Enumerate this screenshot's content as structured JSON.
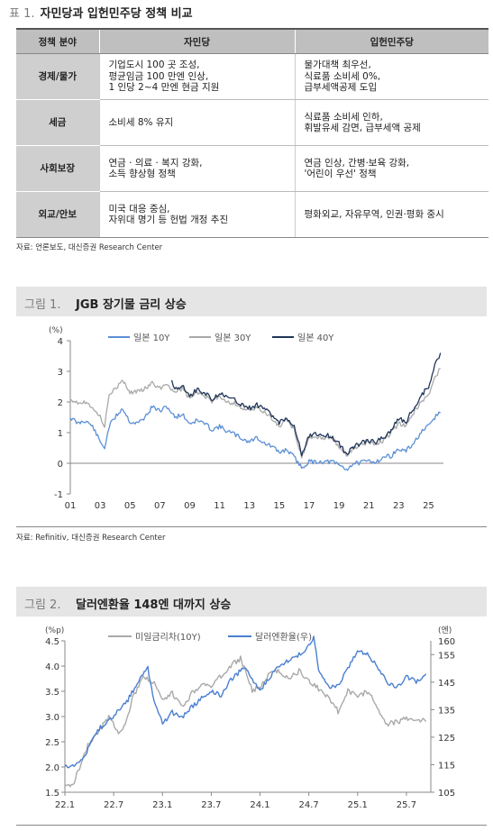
{
  "table": {
    "number": "표 1.",
    "title": "자민당과 입헌민주당 정책 비교",
    "headers": [
      "정책 분야",
      "자민당",
      "입헌민주당"
    ],
    "rows": [
      {
        "category": "경제/물가",
        "ldp": [
          "기업도시 100 곳 조성,",
          "평균임금 100 만엔 인상,",
          "1 인당 2~4 만엔 현금 지원"
        ],
        "cdp": [
          "물가대책 최우선,",
          "식료품 소비세 0%,",
          "급부세액공제 도입"
        ]
      },
      {
        "category": "세금",
        "ldp": [
          "소비세 8% 유지"
        ],
        "cdp": [
          "식료품 소비세 인하,",
          "휘발유세 감면, 급부세액 공제"
        ]
      },
      {
        "category": "사회보장",
        "ldp": [
          "연금 · 의료 · 복지 강화,",
          "소득 향상형 정책"
        ],
        "cdp": [
          "연금 인상, 간병·보육 강화,",
          "'어린이 우선' 정책"
        ]
      },
      {
        "category": "외교/안보",
        "ldp": [
          "미국 대응 중심,",
          "자위대 명기 등 헌법 개정 추진"
        ],
        "cdp": [
          "평화외교, 자유무역, 인권·평화 중시"
        ]
      }
    ],
    "source": "자료: 언론보도, 대신증권 Research Center"
  },
  "figure1": {
    "number": "그림 1.",
    "title": "JGB 장기물 금리 상승",
    "source": "자료: Refinitiv, 대신증권 Research Center"
  },
  "figure2": {
    "number": "그림 2.",
    "title": "달러엔환율 148엔 대까지 상승"
  },
  "chart_data": [
    {
      "type": "line",
      "unit_label": "(%)",
      "ylim": [
        -1,
        4
      ],
      "yticks": [
        -1,
        0,
        1,
        2,
        3,
        4
      ],
      "xlim": [
        2001,
        2026
      ],
      "xticks": [
        "01",
        "03",
        "05",
        "07",
        "09",
        "11",
        "13",
        "15",
        "17",
        "19",
        "21",
        "23",
        "25"
      ],
      "legend_position": "top-center",
      "grid": false,
      "series": [
        {
          "name": "일본 10Y",
          "color": "#5b8fd6",
          "x": [
            2001.0,
            2001.5,
            2002.0,
            2002.5,
            2003.0,
            2003.3,
            2003.6,
            2004.0,
            2004.5,
            2005.0,
            2005.5,
            2006.0,
            2006.5,
            2007.0,
            2007.5,
            2008.0,
            2008.5,
            2009.0,
            2009.5,
            2010.0,
            2010.5,
            2011.0,
            2011.5,
            2012.0,
            2012.5,
            2013.0,
            2013.5,
            2014.0,
            2014.5,
            2015.0,
            2015.5,
            2016.0,
            2016.5,
            2017.0,
            2017.5,
            2018.0,
            2018.5,
            2019.0,
            2019.5,
            2020.0,
            2020.5,
            2021.0,
            2021.5,
            2022.0,
            2022.5,
            2023.0,
            2023.5,
            2024.0,
            2024.5,
            2025.0,
            2025.5,
            2025.8
          ],
          "y": [
            1.5,
            1.3,
            1.4,
            1.2,
            0.7,
            0.5,
            1.2,
            1.5,
            1.8,
            1.35,
            1.3,
            1.5,
            1.85,
            1.7,
            1.85,
            1.5,
            1.6,
            1.3,
            1.4,
            1.3,
            1.1,
            1.2,
            1.05,
            0.95,
            0.8,
            0.7,
            0.85,
            0.65,
            0.55,
            0.35,
            0.45,
            0.2,
            -0.15,
            0.05,
            0.05,
            0.05,
            0.05,
            -0.05,
            -0.2,
            0.0,
            0.02,
            0.08,
            0.05,
            0.2,
            0.25,
            0.45,
            0.4,
            0.65,
            1.0,
            1.2,
            1.55,
            1.65
          ]
        },
        {
          "name": "일본 30Y",
          "color": "#a9a9a9",
          "x": [
            2001.0,
            2001.5,
            2002.0,
            2002.5,
            2003.0,
            2003.3,
            2003.6,
            2004.0,
            2004.5,
            2005.0,
            2005.5,
            2006.0,
            2006.5,
            2007.0,
            2007.5,
            2008.0,
            2008.5,
            2009.0,
            2009.5,
            2010.0,
            2010.5,
            2011.0,
            2011.5,
            2012.0,
            2012.5,
            2013.0,
            2013.5,
            2014.0,
            2014.5,
            2015.0,
            2015.5,
            2016.0,
            2016.5,
            2017.0,
            2017.5,
            2018.0,
            2018.5,
            2019.0,
            2019.5,
            2020.0,
            2020.5,
            2021.0,
            2021.5,
            2022.0,
            2022.5,
            2023.0,
            2023.5,
            2024.0,
            2024.5,
            2025.0,
            2025.5,
            2025.8
          ],
          "y": [
            2.1,
            2.0,
            2.0,
            1.85,
            1.5,
            1.2,
            2.3,
            2.4,
            2.7,
            2.3,
            2.35,
            2.45,
            2.6,
            2.45,
            2.6,
            2.3,
            2.45,
            2.1,
            2.3,
            2.2,
            2.0,
            2.2,
            2.0,
            1.95,
            1.8,
            1.7,
            1.8,
            1.7,
            1.45,
            1.2,
            1.4,
            1.1,
            0.2,
            0.8,
            0.85,
            0.8,
            0.85,
            0.55,
            0.25,
            0.5,
            0.6,
            0.7,
            0.65,
            0.75,
            1.0,
            1.3,
            1.2,
            1.65,
            2.0,
            2.2,
            2.85,
            3.1
          ]
        },
        {
          "name": "일본 40Y",
          "color": "#1f3559",
          "x": [
            2007.8,
            2008.0,
            2008.5,
            2009.0,
            2009.5,
            2010.0,
            2010.5,
            2011.0,
            2011.5,
            2012.0,
            2012.5,
            2013.0,
            2013.5,
            2014.0,
            2014.5,
            2015.0,
            2015.5,
            2016.0,
            2016.5,
            2017.0,
            2017.5,
            2018.0,
            2018.5,
            2019.0,
            2019.5,
            2020.0,
            2020.5,
            2021.0,
            2021.5,
            2022.0,
            2022.5,
            2023.0,
            2023.5,
            2024.0,
            2024.5,
            2025.0,
            2025.5,
            2025.8
          ],
          "y": [
            2.65,
            2.45,
            2.55,
            2.2,
            2.4,
            2.3,
            2.1,
            2.3,
            2.15,
            2.05,
            1.9,
            1.8,
            1.9,
            1.8,
            1.55,
            1.35,
            1.5,
            1.2,
            0.3,
            0.9,
            0.95,
            0.9,
            0.9,
            0.65,
            0.3,
            0.55,
            0.65,
            0.75,
            0.7,
            0.85,
            1.1,
            1.45,
            1.35,
            1.8,
            2.2,
            2.5,
            3.3,
            3.6
          ]
        }
      ]
    },
    {
      "type": "line",
      "left_unit": "(%p)",
      "right_unit": "(엔)",
      "left_ylim": [
        1.5,
        4.5
      ],
      "left_yticks": [
        1.5,
        2.0,
        2.5,
        3.0,
        3.5,
        4.0,
        4.5
      ],
      "right_ylim": [
        105,
        160
      ],
      "right_yticks": [
        105,
        115,
        125,
        135,
        145,
        155,
        160
      ],
      "xlim": [
        2022.0,
        2025.75
      ],
      "xticks": [
        "22.1",
        "22.7",
        "23.1",
        "23.7",
        "24.1",
        "24.7",
        "25.1",
        "25.7"
      ],
      "legend_position": "top-center",
      "grid": false,
      "series": [
        {
          "name": "미일금리차(10Y)",
          "axis": "left",
          "color": "#a9a9a9",
          "x": [
            2022.0,
            2022.08,
            2022.15,
            2022.25,
            2022.35,
            2022.45,
            2022.55,
            2022.62,
            2022.7,
            2022.8,
            2022.9,
            2023.0,
            2023.1,
            2023.2,
            2023.3,
            2023.4,
            2023.5,
            2023.6,
            2023.7,
            2023.8,
            2023.85,
            2023.92,
            2024.0,
            2024.1,
            2024.2,
            2024.3,
            2024.4,
            2024.5,
            2024.6,
            2024.7,
            2024.8,
            2024.9,
            2025.0,
            2025.1,
            2025.2,
            2025.3,
            2025.4,
            2025.5,
            2025.6,
            2025.7
          ],
          "y": [
            1.6,
            1.65,
            2.0,
            2.5,
            2.7,
            3.0,
            2.7,
            2.85,
            3.4,
            3.75,
            3.7,
            3.3,
            3.45,
            3.2,
            3.45,
            3.65,
            3.6,
            3.8,
            4.0,
            4.15,
            3.9,
            3.5,
            3.6,
            3.85,
            3.9,
            3.75,
            3.9,
            3.7,
            3.55,
            3.4,
            3.1,
            3.5,
            3.4,
            3.5,
            3.2,
            2.85,
            2.9,
            2.95,
            2.95,
            2.9
          ]
        },
        {
          "name": "달러엔환율(우)",
          "axis": "right",
          "color": "#4a7fd0",
          "x": [
            2022.0,
            2022.08,
            2022.15,
            2022.2,
            2022.25,
            2022.35,
            2022.45,
            2022.55,
            2022.62,
            2022.7,
            2022.8,
            2022.85,
            2022.9,
            2023.0,
            2023.1,
            2023.2,
            2023.3,
            2023.4,
            2023.5,
            2023.6,
            2023.7,
            2023.8,
            2023.85,
            2023.92,
            2024.0,
            2024.1,
            2024.2,
            2024.3,
            2024.4,
            2024.5,
            2024.55,
            2024.6,
            2024.7,
            2024.8,
            2024.9,
            2025.0,
            2025.1,
            2025.2,
            2025.3,
            2025.4,
            2025.5,
            2025.6,
            2025.7
          ],
          "y": [
            114.5,
            115,
            116,
            118,
            122,
            128,
            131,
            135,
            137,
            142,
            148,
            150,
            140,
            130,
            134,
            132,
            136,
            139,
            142,
            140,
            146,
            149,
            150,
            146,
            142,
            147,
            151,
            153,
            155,
            158,
            161,
            150,
            143,
            144,
            150,
            156,
            155,
            151,
            145,
            143,
            147,
            145,
            148
          ]
        }
      ]
    }
  ]
}
